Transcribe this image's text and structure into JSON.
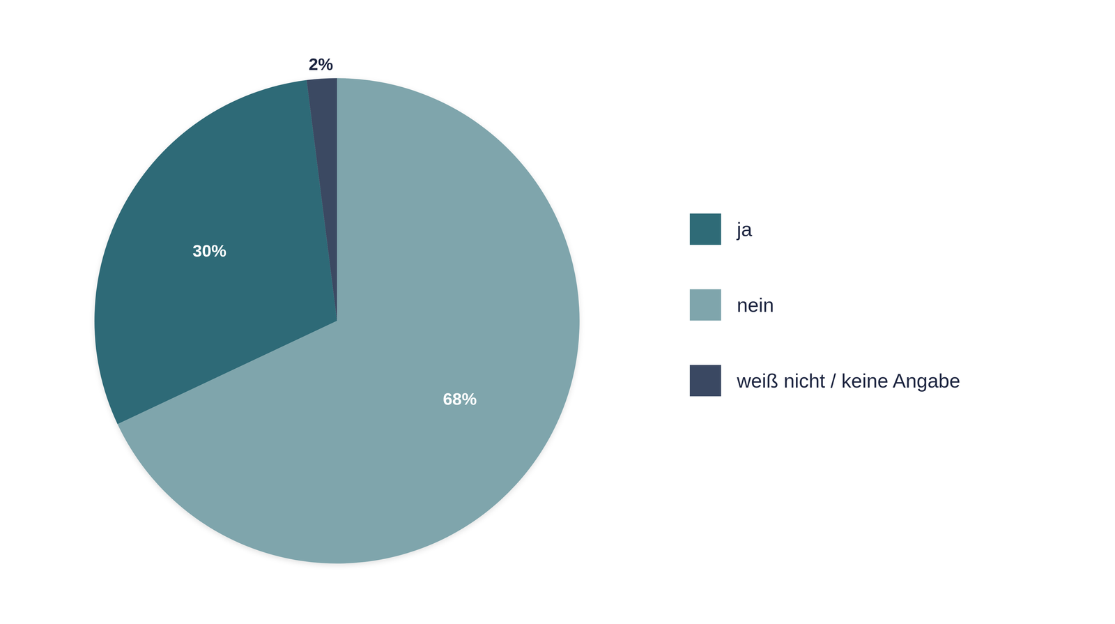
{
  "chart_data": {
    "type": "pie",
    "categories": [
      "ja",
      "nein",
      "weiß nicht / keine Angabe"
    ],
    "values": [
      30,
      68,
      2
    ],
    "value_labels": [
      "30%",
      "68%",
      "2%"
    ],
    "colors": [
      "#2f6b77",
      "#7fa5ac",
      "#3a4862"
    ],
    "data_labels": true,
    "legend": "right"
  }
}
